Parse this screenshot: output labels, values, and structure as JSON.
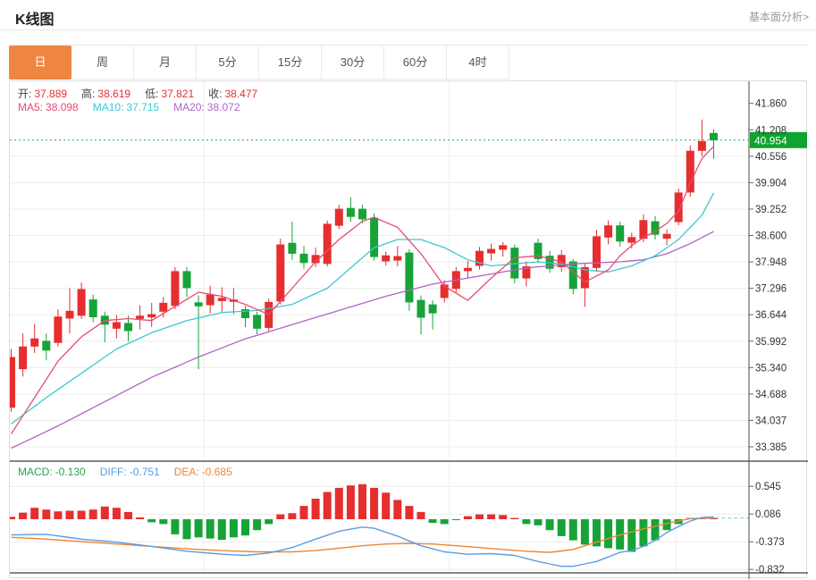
{
  "header": {
    "title": "K线图",
    "analysis_link": "基本面分析>"
  },
  "tabs": {
    "active_index": 0,
    "items": [
      {
        "id": "day",
        "label": "日"
      },
      {
        "id": "week",
        "label": "周"
      },
      {
        "id": "month",
        "label": "月"
      },
      {
        "id": "5min",
        "label": "5分"
      },
      {
        "id": "15min",
        "label": "15分"
      },
      {
        "id": "30min",
        "label": "30分"
      },
      {
        "id": "60min",
        "label": "60分"
      },
      {
        "id": "4hour",
        "label": "4时"
      }
    ]
  },
  "readout": {
    "ohlc": [
      {
        "label": "开:",
        "value": "37.889",
        "color": "#e62e2e"
      },
      {
        "label": "高:",
        "value": "38.619",
        "color": "#e62e2e"
      },
      {
        "label": "低:",
        "value": "37.821",
        "color": "#e62e2e"
      },
      {
        "label": "收:",
        "value": "38.477",
        "color": "#e62e2e"
      }
    ],
    "ma": [
      {
        "label": "MA5:",
        "value": "38.098",
        "color": "#e64c72"
      },
      {
        "label": "MA10:",
        "value": "37.715",
        "color": "#3ec6d4"
      },
      {
        "label": "MA20:",
        "value": "38.072",
        "color": "#b264c8"
      }
    ],
    "macd": [
      {
        "label": "MACD:",
        "value": "-0.130",
        "color": "#27a651"
      },
      {
        "label": "DIFF:",
        "value": "-0.751",
        "color": "#5a9ce0"
      },
      {
        "label": "DEA:",
        "value": "-0.685",
        "color": "#ef8532"
      }
    ]
  },
  "colors": {
    "up": "#e62e2e",
    "down": "#17a338",
    "ma5": "#e64c72",
    "ma10": "#3ec6d4",
    "ma20": "#b264c8",
    "diff": "#5a9ce0",
    "dea": "#ef8532",
    "price_line": "#28a552",
    "badge_bg": "#0fa32f",
    "badge_text": "#ffffff",
    "grid": "#ececec",
    "axis": "#666666",
    "dark_line": "#3c3c3c",
    "tick_text": "#333333",
    "macd_zero_dash": "#72c9dc"
  },
  "chart_data": {
    "type": "candlestick_with_macd",
    "title": "K线图 日K",
    "price_axis_ticks": [
      {
        "label": "41.860",
        "v": 41.86
      },
      {
        "label": "41.208",
        "v": 41.208
      },
      {
        "label": "40.556",
        "v": 40.556
      },
      {
        "label": "39.904",
        "v": 39.904
      },
      {
        "label": "39.252",
        "v": 39.252
      },
      {
        "label": "38.600",
        "v": 38.6
      },
      {
        "label": "37.948",
        "v": 37.948
      },
      {
        "label": "37.296",
        "v": 37.296
      },
      {
        "label": "36.644",
        "v": 36.644
      },
      {
        "label": "35.992",
        "v": 35.992
      },
      {
        "label": "35.340",
        "v": 35.34
      },
      {
        "label": "34.688",
        "v": 34.688
      },
      {
        "label": "34.037",
        "v": 34.037
      },
      {
        "label": "33.385",
        "v": 33.385
      }
    ],
    "macd_axis_ticks": [
      {
        "label": "0.545",
        "v": 0.545
      },
      {
        "label": "0.086",
        "v": 0.086
      },
      {
        "label": "-0.373",
        "v": -0.373
      },
      {
        "label": "-0.832",
        "v": -0.832
      }
    ],
    "last_price": {
      "label": "40.954",
      "v": 40.954
    },
    "candles": [
      [
        34.35,
        35.8,
        34.25,
        35.6
      ],
      [
        35.3,
        36.18,
        35.12,
        35.86
      ],
      [
        35.86,
        36.42,
        35.7,
        36.06
      ],
      [
        36.0,
        36.18,
        35.52,
        35.76
      ],
      [
        35.95,
        36.78,
        35.86,
        36.6
      ],
      [
        36.55,
        37.3,
        36.18,
        36.74
      ],
      [
        36.62,
        37.44,
        36.54,
        37.28
      ],
      [
        37.02,
        37.14,
        36.46,
        36.58
      ],
      [
        36.62,
        36.72,
        35.96,
        36.4
      ],
      [
        36.3,
        36.64,
        36.06,
        36.46
      ],
      [
        36.44,
        36.62,
        35.98,
        36.24
      ],
      [
        36.54,
        36.88,
        36.28,
        36.62
      ],
      [
        36.58,
        36.94,
        36.34,
        36.66
      ],
      [
        36.72,
        37.08,
        36.58,
        36.94
      ],
      [
        36.86,
        37.82,
        36.78,
        37.72
      ],
      [
        37.72,
        37.82,
        37.08,
        37.3
      ],
      [
        36.95,
        37.12,
        35.3,
        36.85
      ],
      [
        36.88,
        37.36,
        36.68,
        37.14
      ],
      [
        36.98,
        37.32,
        36.7,
        37.06
      ],
      [
        36.96,
        37.3,
        36.66,
        37.02
      ],
      [
        36.78,
        36.86,
        36.34,
        36.56
      ],
      [
        36.64,
        36.72,
        36.16,
        36.3
      ],
      [
        36.32,
        37.04,
        36.24,
        36.96
      ],
      [
        36.97,
        38.52,
        36.9,
        38.38
      ],
      [
        38.42,
        38.94,
        38.0,
        38.15
      ],
      [
        38.15,
        38.34,
        37.78,
        37.92
      ],
      [
        37.92,
        38.3,
        37.82,
        38.12
      ],
      [
        37.9,
        38.97,
        37.84,
        38.89
      ],
      [
        38.84,
        39.36,
        38.76,
        39.26
      ],
      [
        39.28,
        39.54,
        38.94,
        39.06
      ],
      [
        39.26,
        39.36,
        38.9,
        39.0
      ],
      [
        39.04,
        39.14,
        37.98,
        38.07
      ],
      [
        37.96,
        38.2,
        37.86,
        38.11
      ],
      [
        37.98,
        38.34,
        37.84,
        38.09
      ],
      [
        38.18,
        38.26,
        36.74,
        36.95
      ],
      [
        37.01,
        37.12,
        36.16,
        36.57
      ],
      [
        36.9,
        37.0,
        36.28,
        36.68
      ],
      [
        37.06,
        37.5,
        36.94,
        37.39
      ],
      [
        37.28,
        37.82,
        37.18,
        37.72
      ],
      [
        37.72,
        37.97,
        37.56,
        37.8
      ],
      [
        37.85,
        38.32,
        37.76,
        38.22
      ],
      [
        38.16,
        38.4,
        37.98,
        38.27
      ],
      [
        38.25,
        38.44,
        38.08,
        38.36
      ],
      [
        38.3,
        38.38,
        37.42,
        37.54
      ],
      [
        37.54,
        37.96,
        37.34,
        37.84
      ],
      [
        38.42,
        38.52,
        37.92,
        38.02
      ],
      [
        38.1,
        38.22,
        37.68,
        37.78
      ],
      [
        37.82,
        38.24,
        37.7,
        38.12
      ],
      [
        37.96,
        38.02,
        37.15,
        37.28
      ],
      [
        37.3,
        37.92,
        36.84,
        37.82
      ],
      [
        37.8,
        38.74,
        37.7,
        38.58
      ],
      [
        38.55,
        38.97,
        38.38,
        38.85
      ],
      [
        38.85,
        38.94,
        38.33,
        38.45
      ],
      [
        38.42,
        38.67,
        38.28,
        38.56
      ],
      [
        38.52,
        39.12,
        38.44,
        38.98
      ],
      [
        38.95,
        39.08,
        38.5,
        38.62
      ],
      [
        38.52,
        38.75,
        38.36,
        38.64
      ],
      [
        38.93,
        39.76,
        38.85,
        39.66
      ],
      [
        39.66,
        40.82,
        39.56,
        40.69
      ],
      [
        40.69,
        41.46,
        40.55,
        40.93
      ],
      [
        41.13,
        41.22,
        40.49,
        40.95
      ]
    ],
    "ma5_points": [
      [
        0,
        33.7
      ],
      [
        2,
        34.6
      ],
      [
        4,
        35.5
      ],
      [
        6,
        36.1
      ],
      [
        8,
        36.5
      ],
      [
        10,
        36.55
      ],
      [
        12,
        36.5
      ],
      [
        14,
        36.85
      ],
      [
        16,
        37.2
      ],
      [
        18,
        37.1
      ],
      [
        20,
        36.9
      ],
      [
        22,
        36.65
      ],
      [
        24,
        37.3
      ],
      [
        26,
        37.95
      ],
      [
        28,
        38.5
      ],
      [
        30,
        38.95
      ],
      [
        31,
        39.05
      ],
      [
        33,
        38.8
      ],
      [
        35,
        38.15
      ],
      [
        37,
        37.35
      ],
      [
        39,
        37.0
      ],
      [
        41,
        37.55
      ],
      [
        43,
        38.05
      ],
      [
        45,
        38.1
      ],
      [
        47,
        37.95
      ],
      [
        49,
        37.45
      ],
      [
        51,
        37.75
      ],
      [
        52,
        38.1
      ],
      [
        53,
        38.35
      ],
      [
        54,
        38.55
      ],
      [
        55,
        38.7
      ],
      [
        56,
        38.9
      ],
      [
        57,
        39.2
      ],
      [
        58,
        39.9
      ],
      [
        59,
        40.5
      ],
      [
        60,
        40.8
      ]
    ],
    "ma10_points": [
      [
        0,
        33.95
      ],
      [
        3,
        34.6
      ],
      [
        6,
        35.2
      ],
      [
        9,
        35.8
      ],
      [
        12,
        36.2
      ],
      [
        15,
        36.5
      ],
      [
        18,
        36.7
      ],
      [
        21,
        36.75
      ],
      [
        24,
        36.9
      ],
      [
        27,
        37.3
      ],
      [
        29,
        37.8
      ],
      [
        31,
        38.3
      ],
      [
        33,
        38.5
      ],
      [
        35,
        38.5
      ],
      [
        37,
        38.3
      ],
      [
        39,
        38.0
      ],
      [
        41,
        37.85
      ],
      [
        43,
        37.9
      ],
      [
        45,
        37.95
      ],
      [
        47,
        37.9
      ],
      [
        49,
        37.75
      ],
      [
        51,
        37.7
      ],
      [
        53,
        37.85
      ],
      [
        55,
        38.1
      ],
      [
        57,
        38.5
      ],
      [
        59,
        39.1
      ],
      [
        60,
        39.65
      ]
    ],
    "ma20_points": [
      [
        0,
        33.35
      ],
      [
        4,
        33.9
      ],
      [
        8,
        34.5
      ],
      [
        12,
        35.1
      ],
      [
        16,
        35.6
      ],
      [
        20,
        36.05
      ],
      [
        24,
        36.4
      ],
      [
        28,
        36.75
      ],
      [
        32,
        37.1
      ],
      [
        36,
        37.4
      ],
      [
        40,
        37.6
      ],
      [
        44,
        37.8
      ],
      [
        48,
        37.9
      ],
      [
        52,
        37.95
      ],
      [
        54,
        38.0
      ],
      [
        56,
        38.15
      ],
      [
        58,
        38.4
      ],
      [
        60,
        38.7
      ]
    ],
    "macd_hist": [
      0.04,
      0.11,
      0.19,
      0.16,
      0.13,
      0.14,
      0.14,
      0.16,
      0.21,
      0.19,
      0.12,
      0.03,
      -0.05,
      -0.08,
      -0.25,
      -0.33,
      -0.3,
      -0.32,
      -0.34,
      -0.3,
      -0.27,
      -0.18,
      -0.08,
      0.08,
      0.1,
      0.22,
      0.34,
      0.45,
      0.52,
      0.56,
      0.58,
      0.52,
      0.44,
      0.32,
      0.22,
      0.12,
      -0.06,
      -0.08,
      -0.01,
      0.05,
      0.08,
      0.08,
      0.07,
      0.02,
      -0.08,
      -0.1,
      -0.18,
      -0.28,
      -0.35,
      -0.42,
      -0.45,
      -0.48,
      -0.5,
      -0.54,
      -0.45,
      -0.35,
      -0.18,
      -0.08,
      0.02,
      0.02,
      0.02
    ],
    "diff_points": [
      [
        0,
        -0.26
      ],
      [
        3,
        -0.25
      ],
      [
        6,
        -0.33
      ],
      [
        9,
        -0.38
      ],
      [
        12,
        -0.45
      ],
      [
        15,
        -0.53
      ],
      [
        18,
        -0.58
      ],
      [
        20,
        -0.6
      ],
      [
        22,
        -0.56
      ],
      [
        24,
        -0.47
      ],
      [
        26,
        -0.33
      ],
      [
        28,
        -0.2
      ],
      [
        30,
        -0.13
      ],
      [
        31,
        -0.15
      ],
      [
        33,
        -0.28
      ],
      [
        35,
        -0.44
      ],
      [
        37,
        -0.54
      ],
      [
        39,
        -0.58
      ],
      [
        41,
        -0.57
      ],
      [
        43,
        -0.6
      ],
      [
        45,
        -0.7
      ],
      [
        47,
        -0.78
      ],
      [
        48,
        -0.78
      ],
      [
        50,
        -0.7
      ],
      [
        52,
        -0.55
      ],
      [
        53,
        -0.52
      ],
      [
        54,
        -0.45
      ],
      [
        55,
        -0.35
      ],
      [
        56,
        -0.22
      ],
      [
        57,
        -0.12
      ],
      [
        58,
        -0.03
      ],
      [
        59,
        0.03
      ],
      [
        60,
        0.04
      ]
    ],
    "dea_points": [
      [
        0,
        -0.3
      ],
      [
        3,
        -0.33
      ],
      [
        6,
        -0.37
      ],
      [
        9,
        -0.41
      ],
      [
        12,
        -0.45
      ],
      [
        15,
        -0.49
      ],
      [
        18,
        -0.52
      ],
      [
        21,
        -0.54
      ],
      [
        24,
        -0.54
      ],
      [
        26,
        -0.52
      ],
      [
        28,
        -0.48
      ],
      [
        30,
        -0.44
      ],
      [
        32,
        -0.41
      ],
      [
        34,
        -0.4
      ],
      [
        36,
        -0.41
      ],
      [
        38,
        -0.44
      ],
      [
        40,
        -0.47
      ],
      [
        42,
        -0.5
      ],
      [
        44,
        -0.53
      ],
      [
        46,
        -0.55
      ],
      [
        48,
        -0.5
      ],
      [
        50,
        -0.38
      ],
      [
        52,
        -0.26
      ],
      [
        54,
        -0.16
      ],
      [
        56,
        -0.07
      ],
      [
        58,
        0.01
      ],
      [
        60,
        0.02
      ]
    ]
  }
}
